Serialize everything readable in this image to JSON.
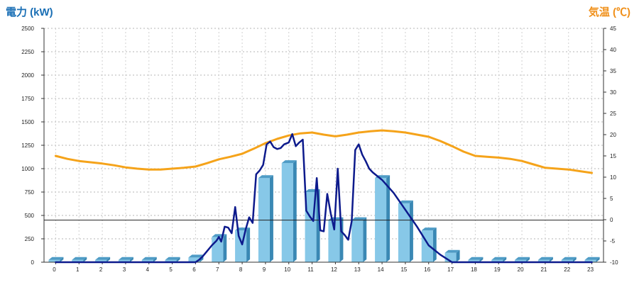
{
  "chart_data": {
    "type": "bar",
    "left_axis_title": "電力 (kW)",
    "right_axis_title": "気温 (℃)",
    "categories": [
      "0",
      "1",
      "2",
      "3",
      "4",
      "5",
      "6",
      "7",
      "8",
      "9",
      "10",
      "11",
      "12",
      "13",
      "14",
      "15",
      "16",
      "17",
      "18",
      "19",
      "20",
      "21",
      "22",
      "23"
    ],
    "left_ylim": [
      0,
      2500
    ],
    "left_yticks": [
      0,
      250,
      500,
      750,
      1000,
      1250,
      1500,
      1750,
      2000,
      2250,
      2500
    ],
    "right_ylim": [
      -10,
      45
    ],
    "right_yticks": [
      -10,
      -5,
      0,
      5,
      10,
      15,
      20,
      25,
      30,
      35,
      40,
      45
    ],
    "grid": true,
    "hourly_power_bars": {
      "color": "#87c8e8",
      "values": [
        25,
        25,
        25,
        25,
        25,
        25,
        50,
        270,
        340,
        900,
        1060,
        750,
        450,
        450,
        900,
        630,
        340,
        100,
        25,
        25,
        25,
        25,
        25,
        25
      ]
    },
    "temperature_line": {
      "color": "#f5a31a",
      "x": [
        0,
        0.5,
        1,
        1.5,
        2,
        2.5,
        3,
        3.5,
        4,
        4.5,
        5,
        5.5,
        6,
        6.5,
        7,
        7.5,
        8,
        8.5,
        9,
        9.5,
        10,
        10.5,
        11,
        11.5,
        12,
        12.5,
        13,
        13.5,
        14,
        14.5,
        15,
        15.5,
        16,
        16.5,
        17,
        17.5,
        18,
        18.5,
        19,
        19.5,
        20,
        20.5,
        21,
        21.5,
        22,
        22.5,
        23
      ],
      "values": [
        15,
        14.3,
        13.8,
        13.5,
        13.2,
        12.8,
        12.3,
        12,
        11.8,
        11.8,
        12,
        12.2,
        12.5,
        13.3,
        14.2,
        14.8,
        15.5,
        16.7,
        18,
        19,
        19.8,
        20.3,
        20.5,
        20,
        19.6,
        20,
        20.5,
        20.8,
        21,
        20.8,
        20.5,
        20,
        19.5,
        18.5,
        17.3,
        16,
        15,
        14.8,
        14.6,
        14.3,
        13.8,
        13,
        12.2,
        12,
        11.8,
        11.4,
        11
      ]
    },
    "power_line": {
      "color": "#0d1a8c",
      "x": [
        0,
        6,
        6.15,
        6.3,
        6.5,
        6.7,
        6.9,
        7,
        7.1,
        7.25,
        7.4,
        7.55,
        7.7,
        7.85,
        8,
        8.15,
        8.3,
        8.45,
        8.6,
        8.75,
        8.9,
        9.05,
        9.2,
        9.35,
        9.5,
        9.65,
        9.8,
        10,
        10.15,
        10.3,
        10.45,
        10.6,
        10.75,
        10.9,
        11.05,
        11.2,
        11.35,
        11.5,
        11.65,
        11.8,
        11.95,
        12.1,
        12.25,
        12.4,
        12.55,
        12.7,
        12.85,
        13,
        13.15,
        13.3,
        13.45,
        13.6,
        14,
        14.5,
        15,
        15.5,
        16,
        16.5,
        17,
        17.3,
        23
      ],
      "values": [
        0,
        0,
        25,
        60,
        120,
        180,
        230,
        270,
        220,
        380,
        370,
        310,
        590,
        280,
        190,
        350,
        480,
        420,
        940,
        980,
        1040,
        1260,
        1290,
        1230,
        1210,
        1220,
        1260,
        1280,
        1370,
        1240,
        1280,
        1310,
        550,
        490,
        440,
        900,
        340,
        330,
        730,
        520,
        350,
        1000,
        330,
        290,
        240,
        440,
        1200,
        1260,
        1150,
        1080,
        1000,
        960,
        880,
        740,
        560,
        380,
        180,
        80,
        0,
        0,
        0
      ]
    },
    "reference_line_value": 450
  }
}
